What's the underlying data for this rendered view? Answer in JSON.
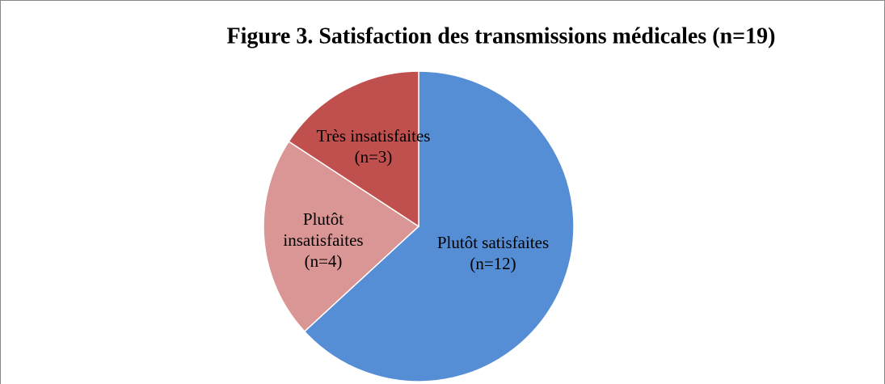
{
  "chart_data": {
    "type": "pie",
    "title": "Figure 3. Satisfaction des transmissions médicales (n=19)",
    "categories": [
      "Plutôt satisfaites",
      "Plutôt insatisfaites",
      "Très insatisfaites"
    ],
    "values": [
      12,
      4,
      3
    ],
    "value_labels": [
      "(n=12)",
      "(n=4)",
      "(n=3)"
    ],
    "colors": [
      "#558ed5",
      "#d99694",
      "#c0504d"
    ]
  }
}
